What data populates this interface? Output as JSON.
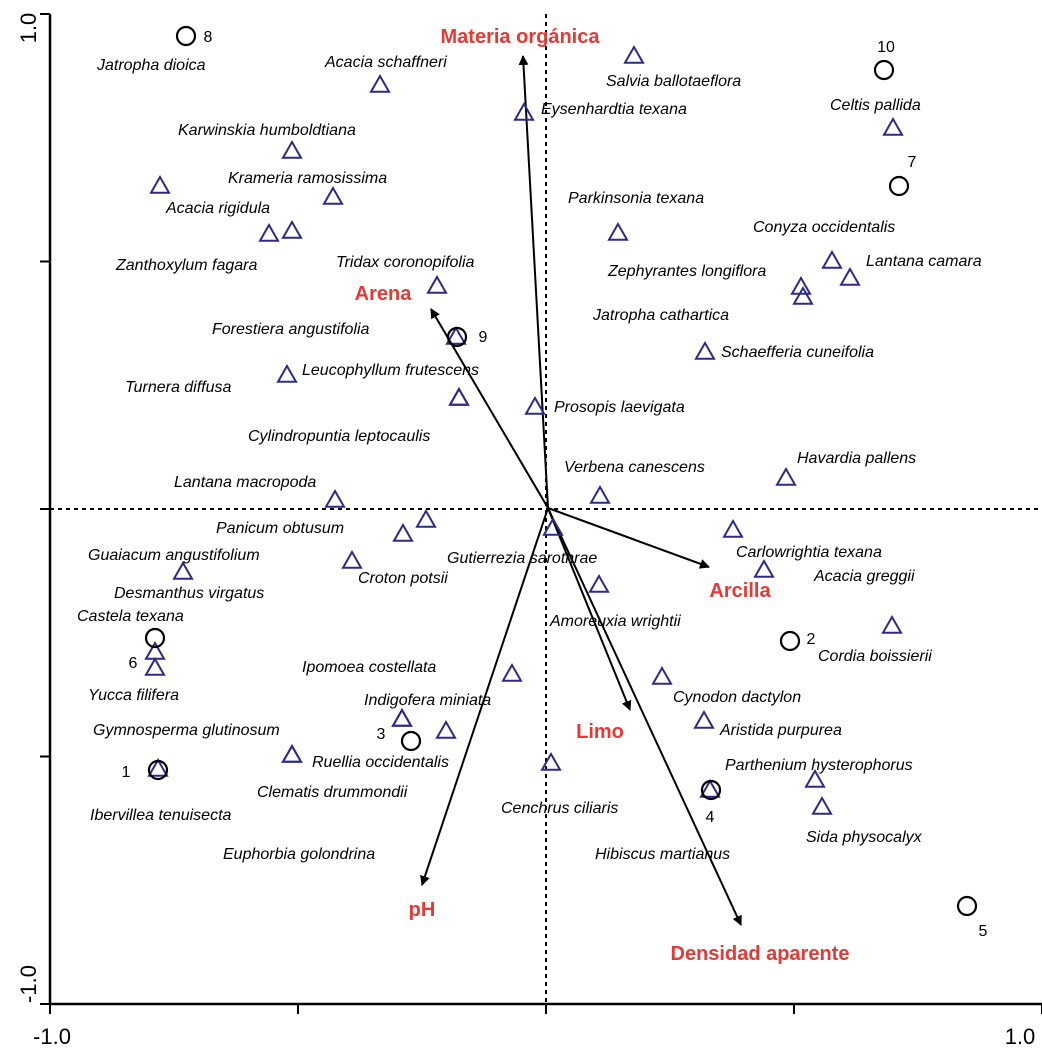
{
  "chart_data": {
    "type": "scatter",
    "subtype": "ordination biplot",
    "xlim": [
      -1.0,
      1.0
    ],
    "ylim": [
      -1.0,
      1.0
    ],
    "x_ticks": [
      "-1.0",
      "1.0"
    ],
    "y_ticks": [
      "1.0",
      "-1.0"
    ],
    "zero_lines": "dashed",
    "colors": {
      "species": "#2e2a86",
      "variables": "#e53935",
      "sites": "#000000",
      "axes": "#000000"
    },
    "species": [
      {
        "name": "Jatropha dioica",
        "x": -0.73,
        "y": 0.96
      },
      {
        "name": "Acacia schaffneri",
        "x": -0.25,
        "y": 0.86
      },
      {
        "name": "Salvia ballotaeflora",
        "x": 0.36,
        "y": 0.92
      },
      {
        "name": "Eysenhardtia texana",
        "x": -0.09,
        "y": 0.8
      },
      {
        "name": "Celtis pallida",
        "x": 0.7,
        "y": 0.77
      },
      {
        "name": "Karwinskia humboldtiana",
        "x": -0.52,
        "y": 0.72
      },
      {
        "name": "Krameria ramosissima",
        "x": -0.43,
        "y": 0.63
      },
      {
        "name": "Acacia rigidula",
        "x": -0.52,
        "y": 0.56
      },
      {
        "name": "Zanthoxylum fagara",
        "x": -0.56,
        "y": 0.55
      },
      {
        "name": "Parkinsonia texana",
        "x": 0.29,
        "y": 0.55
      },
      {
        "name": "Tridax coronopifolia",
        "x": -0.22,
        "y": 0.45
      },
      {
        "name": "Conyza occidentalis",
        "x": 0.57,
        "y": 0.5
      },
      {
        "name": "Lantana camara",
        "x": 0.61,
        "y": 0.47
      },
      {
        "name": "Zephyrantes longiflora",
        "x": 0.51,
        "y": 0.45
      },
      {
        "name": "Jatropha cathartica",
        "x": 0.52,
        "y": 0.43
      },
      {
        "name": "Forestiera angustifolia",
        "x": -0.18,
        "y": 0.35
      },
      {
        "name": "Schaefferia cuneifolia",
        "x": 0.32,
        "y": 0.32
      },
      {
        "name": "Turnera diffusa",
        "x": -0.53,
        "y": 0.27
      },
      {
        "name": "Leucophyllum frutescens",
        "x": -0.18,
        "y": 0.22
      },
      {
        "name": "Prosopis laevigata",
        "x": -0.02,
        "y": 0.21
      },
      {
        "name": "Cylindropuntia leptocaulis",
        "x": -0.18,
        "y": 0.22
      },
      {
        "name": "Havardia pallens",
        "x": 0.48,
        "y": 0.06
      },
      {
        "name": "Verbena canescens",
        "x": 0.11,
        "y": 0.03
      },
      {
        "name": "Lantana macropoda",
        "x": -0.43,
        "y": 0.02
      },
      {
        "name": "Panicum obtusum",
        "x": -0.29,
        "y": -0.05
      },
      {
        "name": "Gutierrezia sarothrae",
        "x": 0.02,
        "y": -0.04
      },
      {
        "name": "Carlowrightia texana",
        "x": 0.37,
        "y": -0.04
      },
      {
        "name": "Croton potsii",
        "x": -0.25,
        "y": -0.03
      },
      {
        "name": "Guaiacum angustifolium",
        "x": -0.39,
        "y": -0.11
      },
      {
        "name": "Desmanthus virgatus",
        "x": -0.73,
        "y": -0.13
      },
      {
        "name": "Acacia greggii",
        "x": 0.44,
        "y": -0.13
      },
      {
        "name": "Amoreuxia wrightii",
        "x": 0.11,
        "y": -0.16
      },
      {
        "name": "Cordia boissierii",
        "x": 0.7,
        "y": -0.24
      },
      {
        "name": "Castela texana",
        "x": -0.79,
        "y": -0.29
      },
      {
        "name": "Yucca filifera",
        "x": -0.79,
        "y": -0.32
      },
      {
        "name": "Ipomoea costellata",
        "x": -0.07,
        "y": -0.34
      },
      {
        "name": "Cynodon dactylon",
        "x": 0.23,
        "y": -0.35
      },
      {
        "name": "Indigofera miniata",
        "x": -0.29,
        "y": -0.43
      },
      {
        "name": "Aristida purpurea",
        "x": 0.32,
        "y": -0.43
      },
      {
        "name": "Gymnosperma glutinosum",
        "x": -0.2,
        "y": -0.45
      },
      {
        "name": "Clematis drummondii",
        "x": -0.52,
        "y": -0.5
      },
      {
        "name": "Ruellia occidentalis",
        "x": -0.52,
        "y": -0.5
      },
      {
        "name": "Ibervillea tenuisecta",
        "x": -0.79,
        "y": -0.53
      },
      {
        "name": "Cenchrus ciliaris",
        "x": 0.02,
        "y": -0.52
      },
      {
        "name": "Parthenium hysterophorus",
        "x": 0.54,
        "y": -0.55
      },
      {
        "name": "Sida physocalyx",
        "x": 0.56,
        "y": -0.61
      },
      {
        "name": "Euphorbia golondrina",
        "x": -0.29,
        "y": -0.43
      },
      {
        "name": "Hibiscus martianus",
        "x": 0.32,
        "y": -0.57
      }
    ],
    "variables": [
      {
        "name": "Materia orgánica",
        "x": -0.09,
        "y": 0.92
      },
      {
        "name": "Arena",
        "x": -0.47,
        "y": 0.56
      },
      {
        "name": "Arcilla",
        "x": 0.65,
        "y": -0.27
      },
      {
        "name": "Limo",
        "x": 0.35,
        "y": -0.82
      },
      {
        "name": "Densidad aparente",
        "x": 0.8,
        "y": -1.18
      },
      {
        "name": "pH",
        "x": -0.5,
        "y": -1.54
      }
    ],
    "sites": [
      {
        "name": "8",
        "x": -0.73,
        "y": 0.96
      },
      {
        "name": "10",
        "x": 0.68,
        "y": 0.89
      },
      {
        "name": "7",
        "x": 0.71,
        "y": 0.65
      },
      {
        "name": "9",
        "x": -0.18,
        "y": 0.35
      },
      {
        "name": "6",
        "x": -0.79,
        "y": -0.26
      },
      {
        "name": "2",
        "x": 0.49,
        "y": -0.27
      },
      {
        "name": "3",
        "x": -0.27,
        "y": -0.47
      },
      {
        "name": "1",
        "x": -0.79,
        "y": -0.53
      },
      {
        "name": "4",
        "x": 0.33,
        "y": -0.57
      },
      {
        "name": "5",
        "x": 0.85,
        "y": -0.81
      }
    ]
  }
}
